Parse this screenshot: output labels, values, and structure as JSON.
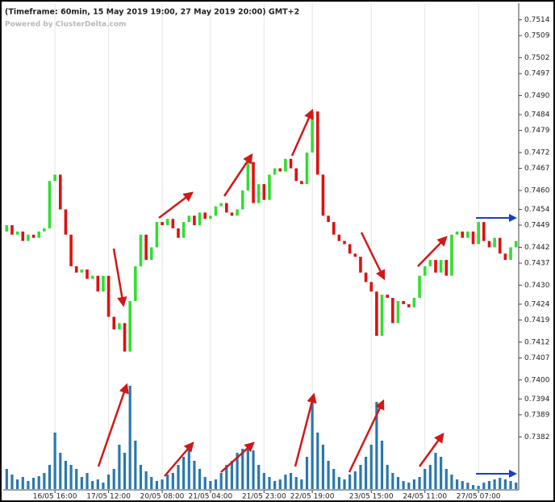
{
  "chart_data": {
    "type": "candlestick",
    "title": "(Timeframe: 60min, 15 May 2019 19:00, 27 May 2019 20:00) GMT+2",
    "subtitle": "Powered by ClusterDelta.com",
    "categories": [
      null,
      null,
      null,
      null,
      null,
      null,
      null,
      null,
      null,
      "16/05 16:00",
      null,
      null,
      null,
      null,
      null,
      null,
      null,
      null,
      null,
      "17/05 12:00",
      null,
      null,
      null,
      null,
      null,
      null,
      null,
      null,
      null,
      "20/05 08:00",
      null,
      null,
      null,
      null,
      null,
      null,
      null,
      null,
      "21/05 04:00",
      null,
      null,
      null,
      null,
      null,
      null,
      null,
      null,
      null,
      "21/05 23:00",
      null,
      null,
      null,
      null,
      null,
      null,
      null,
      null,
      "22/05 19:00",
      null,
      null,
      null,
      null,
      null,
      null,
      null,
      null,
      null,
      null,
      "23/05 15:00",
      null,
      null,
      null,
      null,
      null,
      null,
      null,
      null,
      null,
      "24/05 11:00",
      null,
      null,
      null,
      null,
      null,
      null,
      null,
      null,
      null,
      "27/05 07:00",
      null,
      null,
      null,
      null,
      null,
      null,
      null
    ],
    "open": [
      0.7447,
      0.7449,
      0.7446,
      0.7447,
      0.7444,
      0.7446,
      0.7445,
      0.7447,
      0.7448,
      0.7463,
      0.7465,
      0.7454,
      0.7446,
      0.7436,
      0.7434,
      0.7435,
      0.7432,
      0.7433,
      0.7428,
      0.7433,
      0.742,
      0.7416,
      0.7418,
      0.7409,
      0.7425,
      0.7436,
      0.7446,
      0.7438,
      0.7442,
      0.745,
      0.7449,
      0.7451,
      0.7448,
      0.7445,
      0.745,
      0.7452,
      0.7449,
      0.7453,
      0.7451,
      0.7452,
      0.7455,
      0.7456,
      0.7453,
      0.7452,
      0.7454,
      0.746,
      0.7469,
      0.7456,
      0.7462,
      0.7457,
      0.7465,
      0.7467,
      0.7466,
      0.747,
      0.7467,
      0.7463,
      0.7462,
      0.7472,
      0.7485,
      0.7465,
      0.7452,
      0.745,
      0.7446,
      0.7444,
      0.7443,
      0.744,
      0.7439,
      0.7434,
      0.7431,
      0.7428,
      0.7414,
      0.7427,
      0.7426,
      0.7418,
      0.7425,
      0.7424,
      0.7423,
      0.7426,
      0.7433,
      0.7436,
      0.7438,
      0.7434,
      0.7438,
      0.7433,
      0.7446,
      0.7447,
      0.7445,
      0.7447,
      0.7443,
      0.745,
      0.7444,
      0.7442,
      0.7445,
      0.744,
      0.7438,
      0.7442
    ],
    "close": [
      0.7449,
      0.7446,
      0.7447,
      0.7444,
      0.7446,
      0.7445,
      0.7447,
      0.7448,
      0.7463,
      0.7465,
      0.7454,
      0.7446,
      0.7436,
      0.7434,
      0.7435,
      0.7432,
      0.7433,
      0.7428,
      0.7433,
      0.742,
      0.7416,
      0.7418,
      0.7409,
      0.7425,
      0.7436,
      0.7446,
      0.7438,
      0.7442,
      0.745,
      0.7449,
      0.7451,
      0.7448,
      0.7445,
      0.745,
      0.7452,
      0.7449,
      0.7453,
      0.7451,
      0.7452,
      0.7455,
      0.7456,
      0.7453,
      0.7452,
      0.7454,
      0.746,
      0.7469,
      0.7456,
      0.7462,
      0.7457,
      0.7465,
      0.7467,
      0.7466,
      0.747,
      0.7467,
      0.7463,
      0.7462,
      0.7472,
      0.7485,
      0.7465,
      0.7452,
      0.745,
      0.7446,
      0.7444,
      0.7443,
      0.744,
      0.7439,
      0.7434,
      0.7431,
      0.7428,
      0.7414,
      0.7427,
      0.7426,
      0.7418,
      0.7425,
      0.7424,
      0.7423,
      0.7426,
      0.7433,
      0.7436,
      0.7438,
      0.7434,
      0.7438,
      0.7433,
      0.7446,
      0.7447,
      0.7445,
      0.7447,
      0.7443,
      0.745,
      0.7444,
      0.7442,
      0.7445,
      0.744,
      0.7438,
      0.7442,
      0.7444
    ],
    "volume": [
      25,
      18,
      12,
      15,
      10,
      14,
      16,
      20,
      30,
      70,
      45,
      35,
      30,
      25,
      15,
      20,
      10,
      12,
      8,
      18,
      25,
      55,
      45,
      128,
      60,
      30,
      22,
      15,
      10,
      12,
      18,
      20,
      30,
      40,
      50,
      35,
      25,
      15,
      10,
      12,
      20,
      30,
      35,
      45,
      50,
      55,
      48,
      30,
      20,
      15,
      10,
      12,
      18,
      20,
      15,
      12,
      40,
      112,
      70,
      55,
      35,
      25,
      15,
      12,
      18,
      22,
      30,
      40,
      55,
      108,
      60,
      30,
      20,
      15,
      10,
      8,
      12,
      15,
      25,
      30,
      45,
      40,
      25,
      18,
      12,
      10,
      8,
      5,
      4,
      8,
      10,
      12,
      14,
      12,
      10,
      8
    ],
    "up_color": "#33dd33",
    "down_color": "#dd1111",
    "volume_color": "#2b78ad",
    "ylim": [
      0.7367,
      0.7519
    ],
    "yticks": [
      0.7514,
      0.7509,
      0.7502,
      0.7497,
      {
        "value": 0.749,
        "label": "0.7490"
      },
      0.7484,
      0.7479,
      0.7472,
      0.7467,
      {
        "value": 0.746,
        "label": "0.7460"
      },
      0.7454,
      0.7449,
      0.7442,
      0.7437,
      {
        "value": 0.743,
        "label": "0.7430"
      },
      0.7424,
      0.7419,
      0.7412,
      0.7407,
      {
        "value": 0.74,
        "label": "0.7400"
      },
      0.7394,
      0.7389,
      0.7382
    ],
    "grid": true
  }
}
